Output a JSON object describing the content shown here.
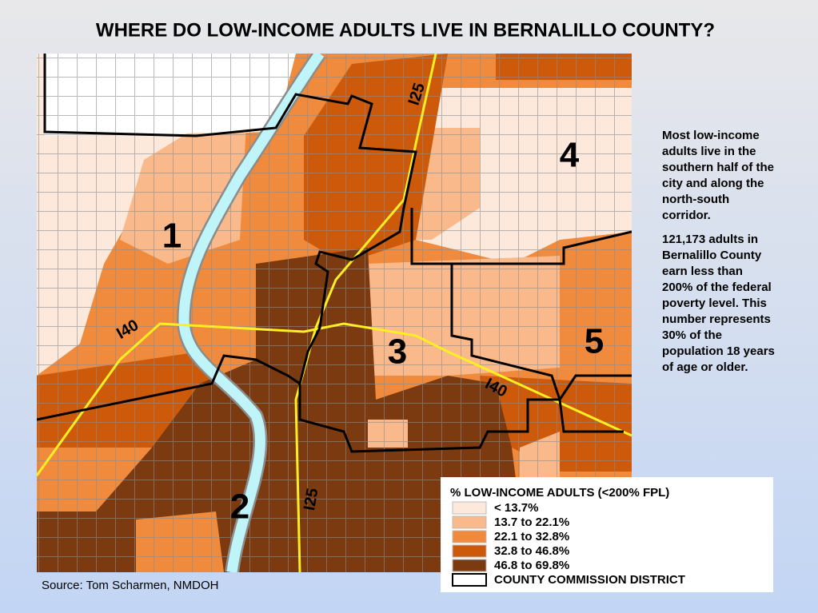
{
  "title": "WHERE DO LOW-INCOME ADULTS LIVE IN BERNALILLO COUNTY?",
  "districts": [
    "1",
    "2",
    "3",
    "4",
    "5"
  ],
  "highway_labels": [
    "I25",
    "I25",
    "I40",
    "I40"
  ],
  "notes": [
    "Most low-income adults live in the southern half of the city and along the north-south corridor.",
    "121,173 adults in Bernalillo County earn less than 200% of the federal poverty level. This number represents 30% of the population 18 years of age or older."
  ],
  "legend": {
    "title": "% LOW-INCOME ADULTS (<200% FPL)",
    "items": [
      {
        "label": "< 13.7%",
        "color": "#fde9dc"
      },
      {
        "label": "13.7 to 22.1%",
        "color": "#f9b98a"
      },
      {
        "label": "22.1 to 32.8%",
        "color": "#f08a3c"
      },
      {
        "label": "32.8 to 46.8%",
        "color": "#cc5a0a"
      },
      {
        "label": "46.8 to 69.8%",
        "color": "#7b3a10"
      },
      {
        "label": "COUNTY COMMISSION DISTRICT",
        "color": "#ffffff"
      }
    ]
  },
  "source": "Source: Tom Scharmen, NMDOH"
}
